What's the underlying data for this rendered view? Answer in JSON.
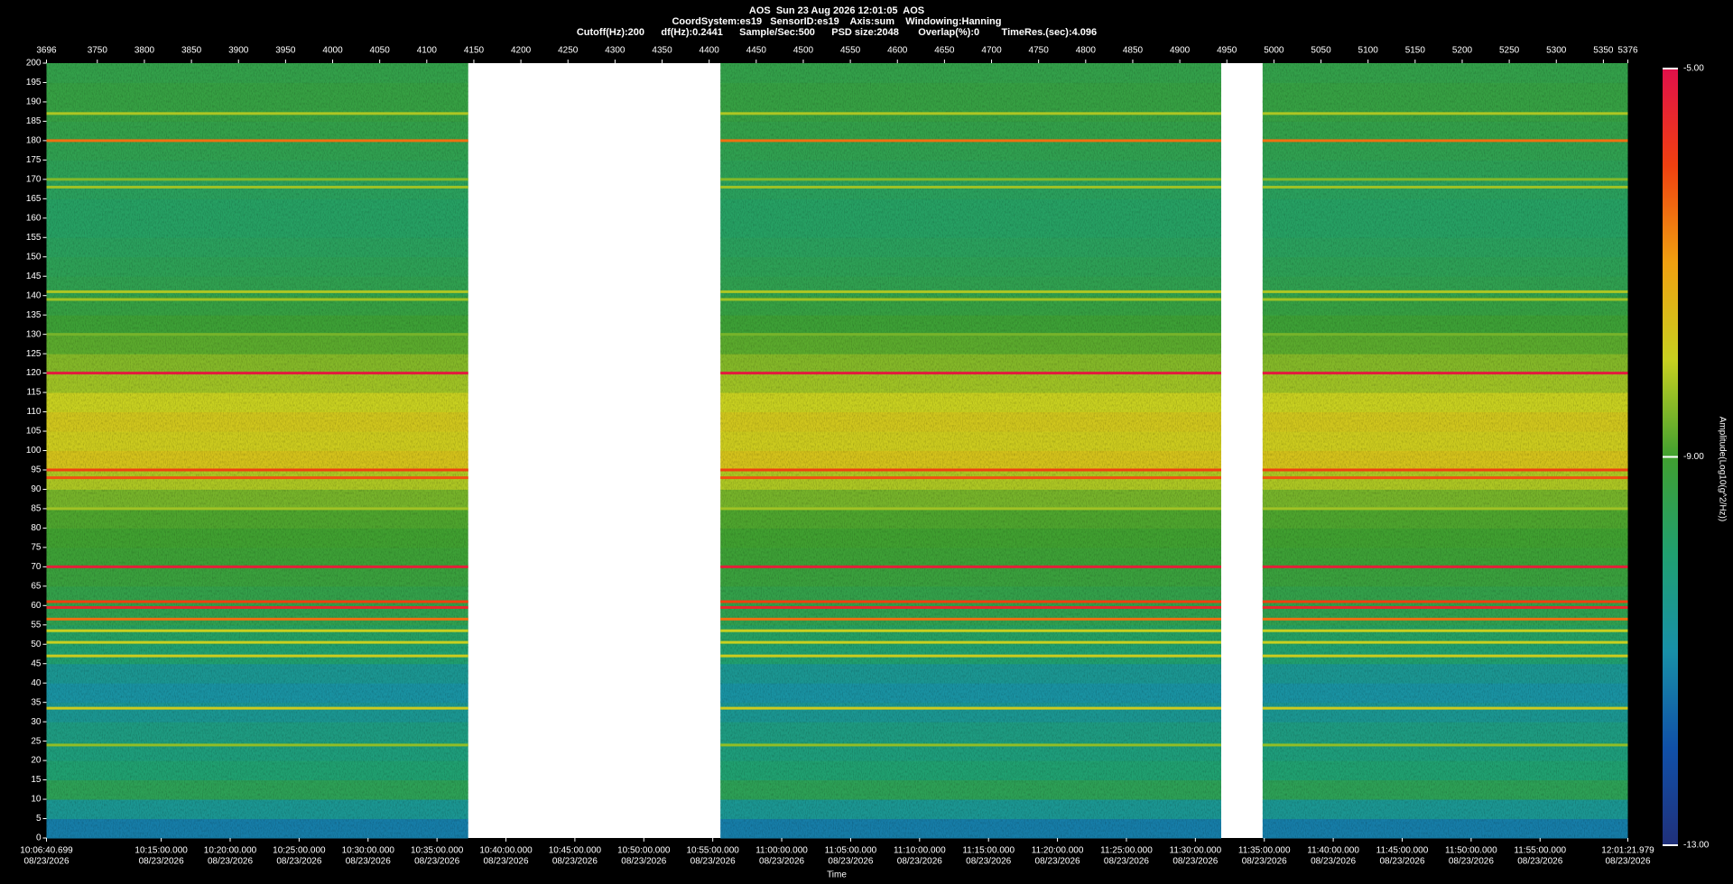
{
  "chart_data": {
    "type": "spectrogram",
    "header": [
      "AOS  Sun 23 Aug 2026 12:01:05  AOS",
      "CoordSystem:es19   SensorID:es19    Axis:sum    Windowing:Hanning",
      "Cutoff(Hz):200      df(Hz):0.2441      Sample/Sec:500      PSD size:2048       Overlap(%):0        TimeRes.(sec):4.096"
    ],
    "x_label": "Time",
    "colorbar_label": "Amplitude(Log10(g^2/Hz))",
    "xlim": [
      3696,
      5376
    ],
    "xticks": [
      3696,
      3750,
      3800,
      3850,
      3900,
      3950,
      4000,
      4050,
      4100,
      4150,
      4200,
      4250,
      4300,
      4350,
      4400,
      4450,
      4500,
      4550,
      4600,
      4650,
      4700,
      4750,
      4800,
      4850,
      4900,
      4950,
      5000,
      5050,
      5100,
      5150,
      5200,
      5250,
      5300,
      5350,
      5376
    ],
    "time_ticks": [
      {
        "value": 3696,
        "label": "10:06:40.699"
      },
      {
        "value": 3817.9,
        "label": "10:15:00.000"
      },
      {
        "value": 3891.14,
        "label": "10:20:00.000"
      },
      {
        "value": 3964.38,
        "label": "10:25:00.000"
      },
      {
        "value": 4037.63,
        "label": "10:30:00.000"
      },
      {
        "value": 4110.87,
        "label": "10:35:00.000"
      },
      {
        "value": 4184.11,
        "label": "10:40:00.000"
      },
      {
        "value": 4257.35,
        "label": "10:45:00.000"
      },
      {
        "value": 4330.6,
        "label": "10:50:00.000"
      },
      {
        "value": 4403.84,
        "label": "10:55:00.000"
      },
      {
        "value": 4477.08,
        "label": "11:00:00.000"
      },
      {
        "value": 4550.32,
        "label": "11:05:00.000"
      },
      {
        "value": 4623.57,
        "label": "11:10:00.000"
      },
      {
        "value": 4696.81,
        "label": "11:15:00.000"
      },
      {
        "value": 4770.05,
        "label": "11:20:00.000"
      },
      {
        "value": 4843.29,
        "label": "11:25:00.000"
      },
      {
        "value": 4916.54,
        "label": "11:30:00.000"
      },
      {
        "value": 4989.78,
        "label": "11:35:00.000"
      },
      {
        "value": 5063.02,
        "label": "11:40:00.000"
      },
      {
        "value": 5136.26,
        "label": "11:45:00.000"
      },
      {
        "value": 5209.51,
        "label": "11:50:00.000"
      },
      {
        "value": 5282.75,
        "label": "11:55:00.000"
      },
      {
        "value": 5376,
        "label": "12:01:21.979"
      }
    ],
    "time_tick_dates": [
      "08/23/2026",
      "08/23/2026",
      "08/23/2026",
      "08/23/2026",
      "08/23/2026",
      "08/23/2026",
      "08/23/2026",
      "08/23/2026",
      "08/23/2026",
      "08/23/2026",
      "08/23/2026",
      "08/23/2026",
      "08/23/2026",
      "08/23/2026",
      "08/23/2026",
      "08/23/2026",
      "08/23/2026",
      "08/23/2026",
      "08/23/2026",
      "08/23/2026",
      "08/23/2026",
      "08/23/2026",
      "08/23/2026"
    ],
    "ylim": [
      0,
      200
    ],
    "yticks": [
      0,
      5,
      10,
      15,
      20,
      25,
      30,
      35,
      40,
      45,
      50,
      55,
      60,
      65,
      70,
      75,
      80,
      85,
      90,
      95,
      100,
      105,
      110,
      115,
      120,
      125,
      130,
      135,
      140,
      145,
      150,
      155,
      160,
      165,
      170,
      175,
      180,
      185,
      190,
      195,
      200
    ],
    "segments": [
      [
        3696,
        4144
      ],
      [
        4412,
        4944
      ],
      [
        4988,
        5376
      ]
    ],
    "frequencies": [
      0,
      5,
      10,
      15,
      20,
      25,
      30,
      35,
      40,
      45,
      50,
      55,
      60,
      65,
      70,
      75,
      80,
      85,
      90,
      95,
      100,
      105,
      110,
      115,
      120,
      125,
      130,
      135,
      140,
      145,
      150,
      155,
      160,
      165,
      170,
      175,
      180,
      185,
      190,
      195,
      200
    ],
    "amplitudes": [
      -11.3,
      -10.6,
      -9.6,
      -10.0,
      -10.2,
      -10.3,
      -10.6,
      -10.9,
      -10.6,
      -10.0,
      -9.8,
      -9.5,
      -9.4,
      -9.2,
      -9.1,
      -9.0,
      -8.9,
      -8.6,
      -8.2,
      -7.7,
      -7.9,
      -7.8,
      -8.0,
      -8.3,
      -8.5,
      -8.8,
      -9.1,
      -9.3,
      -9.5,
      -9.6,
      -9.7,
      -9.8,
      -9.8,
      -9.7,
      -9.6,
      -9.5,
      -9.4,
      -9.3,
      -9.3,
      -9.4
    ],
    "lines": [
      {
        "freq": 187,
        "amplitude": -8.2
      },
      {
        "freq": 180,
        "amplitude": -6.5
      },
      {
        "freq": 170,
        "amplitude": -8.5
      },
      {
        "freq": 168,
        "amplitude": -8.3
      },
      {
        "freq": 141,
        "amplitude": -8.2
      },
      {
        "freq": 139,
        "amplitude": -8.3
      },
      {
        "freq": 130,
        "amplitude": -8.6
      },
      {
        "freq": 120,
        "amplitude": -5.2
      },
      {
        "freq": 95,
        "amplitude": -6.0
      },
      {
        "freq": 93,
        "amplitude": -6.2
      },
      {
        "freq": 85,
        "amplitude": -8.3
      },
      {
        "freq": 70,
        "amplitude": -5.3
      },
      {
        "freq": 61,
        "amplitude": -6.0
      },
      {
        "freq": 59.5,
        "amplitude": -5.5
      },
      {
        "freq": 56.5,
        "amplitude": -6.5
      },
      {
        "freq": 53.5,
        "amplitude": -8.0
      },
      {
        "freq": 50.5,
        "amplitude": -8.0
      },
      {
        "freq": 47,
        "amplitude": -7.9
      },
      {
        "freq": 33.5,
        "amplitude": -7.9
      },
      {
        "freq": 24,
        "amplitude": -8.4
      }
    ],
    "clim": [
      -13,
      -5
    ],
    "cticks": [
      {
        "value": -5,
        "label": "-5.00"
      },
      {
        "value": -9,
        "label": "-9.00"
      },
      {
        "value": -13,
        "label": "-13.00"
      }
    ],
    "colormap": [
      "#20307a",
      "#1050a8",
      "#1890a8",
      "#20a070",
      "#40a030",
      "#c8d020",
      "#f0a010",
      "#f04010",
      "#e0104a"
    ],
    "gap_color": "#ffffff"
  }
}
